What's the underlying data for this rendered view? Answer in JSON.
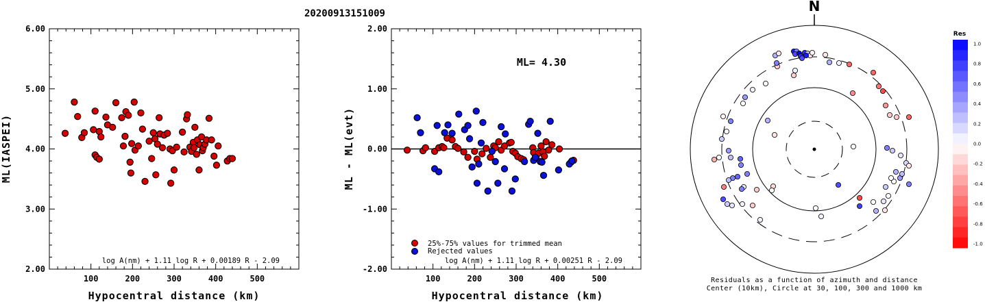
{
  "title": "20200913151009",
  "colors": {
    "red": "#d50000",
    "blue": "#0a10d8",
    "axis": "#000000"
  },
  "chart_data": [
    {
      "type": "scatter",
      "xlabel": "Hypocentral distance (km)",
      "ylabel": "ML(IASPEI)",
      "xlim": [
        0,
        600
      ],
      "ylim": [
        2,
        6
      ],
      "xticks": [
        "100",
        "200",
        "300",
        "400",
        "500"
      ],
      "yticks": [
        "2.00",
        "3.00",
        "4.00",
        "5.00",
        "6.00"
      ],
      "formula": "log A(nm) + 1.11 log R + 0.00189 R - 2.09",
      "series": [
        {
          "points": [
            [
              38,
              4.26
            ],
            [
              60,
              4.78
            ],
            [
              68,
              4.54
            ],
            [
              78,
              4.19
            ],
            [
              84,
              4.27
            ],
            [
              106,
              4.32
            ],
            [
              110,
              4.63
            ],
            [
              110,
              3.9
            ],
            [
              114,
              3.86
            ],
            [
              120,
              3.83
            ],
            [
              120,
              4.29
            ],
            [
              124,
              4.2
            ],
            [
              136,
              4.53
            ],
            [
              140,
              4.4
            ],
            [
              152,
              4.36
            ],
            [
              160,
              4.77
            ],
            [
              174,
              4.52
            ],
            [
              178,
              4.05
            ],
            [
              182,
              4.21
            ],
            [
              184,
              4.62
            ],
            [
              190,
              4.56
            ],
            [
              194,
              3.78
            ],
            [
              196,
              3.6
            ],
            [
              198,
              4.09
            ],
            [
              204,
              4.78
            ],
            [
              206,
              3.98
            ],
            [
              214,
              4.05
            ],
            [
              220,
              4.6
            ],
            [
              224,
              4.33
            ],
            [
              230,
              3.46
            ],
            [
              240,
              4.13
            ],
            [
              246,
              3.84
            ],
            [
              250,
              4.27
            ],
            [
              254,
              4.17
            ],
            [
              256,
              3.57
            ],
            [
              260,
              4.08
            ],
            [
              264,
              4.52
            ],
            [
              266,
              4.25
            ],
            [
              272,
              4.02
            ],
            [
              276,
              4.23
            ],
            [
              284,
              4.26
            ],
            [
              290,
              4.0
            ],
            [
              292,
              3.43
            ],
            [
              296,
              3.97
            ],
            [
              300,
              3.65
            ],
            [
              306,
              4.03
            ],
            [
              320,
              4.28
            ],
            [
              324,
              3.95
            ],
            [
              330,
              4.5
            ],
            [
              332,
              4.57
            ],
            [
              338,
              4.03
            ],
            [
              342,
              3.96
            ],
            [
              346,
              4.11
            ],
            [
              348,
              4.02
            ],
            [
              350,
              4.36
            ],
            [
              354,
              3.91
            ],
            [
              356,
              4.15
            ],
            [
              360,
              3.65
            ],
            [
              362,
              4.07
            ],
            [
              366,
              4.2
            ],
            [
              368,
              3.97
            ],
            [
              370,
              4.02
            ],
            [
              374,
              4.08
            ],
            [
              378,
              4.15
            ],
            [
              384,
              4.51
            ],
            [
              390,
              4.15
            ],
            [
              396,
              3.88
            ],
            [
              402,
              3.73
            ],
            [
              406,
              4.05
            ],
            [
              428,
              3.8
            ],
            [
              434,
              3.84
            ],
            [
              440,
              3.84
            ]
          ]
        }
      ]
    },
    {
      "type": "scatter",
      "xlabel": "Hypocentral distance (km)",
      "ylabel": "ML - ML(evt)",
      "xlim": [
        0,
        600
      ],
      "ylim": [
        -2,
        2
      ],
      "xticks": [
        "100",
        "200",
        "300",
        "400",
        "500"
      ],
      "yticks": [
        "-2.00",
        "-1.00",
        "0.00",
        "1.00",
        "2.00"
      ],
      "annotation": "ML= 4.30",
      "formula": "log A(nm) + 1.11 log R + 0.00251 R - 2.09",
      "legend": [
        "25%-75% values for trimmed mean",
        "Rejected values"
      ],
      "series": [
        {
          "name": "25%-75% values for trimmed mean",
          "color": "red",
          "points": [
            [
              38,
              -0.02
            ],
            [
              76,
              -0.03
            ],
            [
              82,
              0.02
            ],
            [
              104,
              -0.04
            ],
            [
              114,
              0.02
            ],
            [
              122,
              0.04
            ],
            [
              126,
              0.02
            ],
            [
              134,
              0.18
            ],
            [
              146,
              0.15
            ],
            [
              154,
              0.04
            ],
            [
              160,
              0.01
            ],
            [
              174,
              -0.05
            ],
            [
              184,
              -0.14
            ],
            [
              200,
              -0.04
            ],
            [
              206,
              -0.17
            ],
            [
              218,
              -0.08
            ],
            [
              228,
              0.01
            ],
            [
              238,
              -0.14
            ],
            [
              246,
              0.05
            ],
            [
              250,
              0.02
            ],
            [
              258,
              0.12
            ],
            [
              264,
              -0.02
            ],
            [
              272,
              0.05
            ],
            [
              284,
              0.1
            ],
            [
              288,
              0.11
            ],
            [
              292,
              -0.04
            ],
            [
              298,
              -0.07
            ],
            [
              304,
              -0.13
            ],
            [
              312,
              -0.16
            ],
            [
              318,
              -0.18
            ],
            [
              340,
              0.02
            ],
            [
              342,
              -0.06
            ],
            [
              348,
              -0.14
            ],
            [
              354,
              -0.07
            ],
            [
              360,
              0.05
            ],
            [
              364,
              -0.05
            ],
            [
              368,
              -0.12
            ],
            [
              372,
              0.12
            ],
            [
              378,
              -0.02
            ],
            [
              386,
              0.07
            ],
            [
              404,
              0.0
            ],
            [
              432,
              -0.22
            ],
            [
              438,
              -0.19
            ]
          ]
        },
        {
          "name": "Rejected values",
          "color": "blue",
          "points": [
            [
              62,
              0.52
            ],
            [
              70,
              0.27
            ],
            [
              104,
              -0.33
            ],
            [
              110,
              0.39
            ],
            [
              114,
              -0.38
            ],
            [
              128,
              0.27
            ],
            [
              136,
              0.4
            ],
            [
              146,
              0.26
            ],
            [
              162,
              0.58
            ],
            [
              176,
              0.32
            ],
            [
              184,
              0.39
            ],
            [
              188,
              0.17
            ],
            [
              194,
              -0.3
            ],
            [
              204,
              0.63
            ],
            [
              206,
              -0.57
            ],
            [
              210,
              -0.25
            ],
            [
              216,
              0.1
            ],
            [
              220,
              0.44
            ],
            [
              232,
              -0.7
            ],
            [
              242,
              -0.04
            ],
            [
              250,
              -0.21
            ],
            [
              256,
              -0.57
            ],
            [
              264,
              0.37
            ],
            [
              272,
              -0.33
            ],
            [
              274,
              0.25
            ],
            [
              290,
              -0.7
            ],
            [
              298,
              -0.5
            ],
            [
              320,
              -0.21
            ],
            [
              330,
              0.41
            ],
            [
              334,
              0.46
            ],
            [
              342,
              -0.19
            ],
            [
              346,
              -0.14
            ],
            [
              352,
              0.26
            ],
            [
              358,
              -0.21
            ],
            [
              362,
              -0.22
            ],
            [
              366,
              -0.44
            ],
            [
              382,
              0.46
            ],
            [
              402,
              -0.35
            ],
            [
              428,
              -0.25
            ],
            [
              434,
              -0.2
            ]
          ]
        }
      ]
    },
    {
      "type": "scatter",
      "north_label": "N",
      "caption": "Residuals as a function of azimuth and distance",
      "caption2": "Center (10km), Circle at 30, 100, 300 and 1000 km",
      "colorbar_title": "Res",
      "colorbar_labels": [
        "1.0",
        "0.8",
        "0.6",
        "0.4",
        "0.2",
        "0.0",
        "-0.2",
        "-0.4",
        "-0.6",
        "-0.8",
        "-1.0"
      ],
      "series": [
        {
          "name": "residual",
          "points": [
            [
              -57,
              -137,
              0.3
            ],
            [
              -52,
              -140,
              -0.1
            ],
            [
              -30,
              -143,
              0.9
            ],
            [
              -26,
              -143,
              0.5
            ],
            [
              -28,
              -139,
              0.7
            ],
            [
              -22,
              -140,
              1.0
            ],
            [
              -20,
              -136,
              0.8
            ],
            [
              -14,
              -141,
              0.8
            ],
            [
              -10,
              -140,
              0.2
            ],
            [
              -6,
              -137,
              -0.1
            ],
            [
              -3,
              -141,
              -0.05
            ],
            [
              -12,
              -137,
              0.9
            ],
            [
              -18,
              -133,
              0.7
            ],
            [
              -28,
              -115,
              0.05
            ],
            [
              -30,
              -108,
              -0.2
            ],
            [
              -54,
              -121,
              -0.2
            ],
            [
              -55,
              -126,
              0.5
            ],
            [
              16,
              -138,
              -0.1
            ],
            [
              22,
              -127,
              0.3
            ],
            [
              36,
              -126,
              0.05
            ],
            [
              51,
              -124,
              -0.6
            ],
            [
              86,
              -112,
              -0.6
            ],
            [
              94,
              -92,
              -0.55
            ],
            [
              100,
              -85,
              -0.7
            ],
            [
              56,
              -82,
              -0.45
            ],
            [
              104,
              -64,
              -0.4
            ],
            [
              110,
              -50,
              -0.2
            ],
            [
              138,
              -47,
              -0.6
            ],
            [
              120,
              -47,
              -0.2
            ],
            [
              -71,
              -96,
              0.0
            ],
            [
              -90,
              -87,
              0.05
            ],
            [
              -104,
              -67,
              0.0
            ],
            [
              -133,
              -48,
              -0.05
            ],
            [
              -122,
              -41,
              0.5
            ],
            [
              -101,
              -76,
              0.4
            ],
            [
              -128,
              -26,
              0.0
            ],
            [
              -135,
              -15,
              0.2
            ],
            [
              -58,
              -21,
              -0.1
            ],
            [
              -68,
              -42,
              0.3
            ],
            [
              -125,
              2,
              0.4
            ],
            [
              -122,
              12,
              0.25
            ],
            [
              -139,
              12,
              0.0
            ],
            [
              -108,
              14,
              0.6
            ],
            [
              -107,
              23,
              0.5
            ],
            [
              -146,
              15,
              -0.3
            ],
            [
              -98,
              36,
              0.5
            ],
            [
              -112,
              40,
              0.6
            ],
            [
              -119,
              42,
              0.5
            ],
            [
              -125,
              45,
              0.25
            ],
            [
              -132,
              55,
              -0.5
            ],
            [
              -103,
              55,
              0.1
            ],
            [
              -84,
              59,
              -0.2
            ],
            [
              -106,
              58,
              0.5
            ],
            [
              -133,
              73,
              0.7
            ],
            [
              -127,
              80,
              0.2
            ],
            [
              -120,
              82,
              0.1
            ],
            [
              -105,
              80,
              0.05
            ],
            [
              -90,
              82,
              -0.2
            ],
            [
              -60,
              54,
              -0.15
            ],
            [
              -79,
              103,
              0.05
            ],
            [
              -62,
              60,
              0.0
            ],
            [
              2,
              86,
              0.0
            ],
            [
              10,
              98,
              0.05
            ],
            [
              35,
              52,
              0.7
            ],
            [
              57,
              -4,
              0.0
            ],
            [
              66,
              71,
              -0.7
            ],
            [
              90,
              90,
              0.3
            ],
            [
              66,
              83,
              0.75
            ],
            [
              86,
              77,
              0.0
            ],
            [
              106,
              -2,
              0.5
            ],
            [
              114,
              2,
              0.2
            ],
            [
              126,
              9,
              0.1
            ],
            [
              134,
              20,
              0.15
            ],
            [
              138,
              24,
              -0.1
            ],
            [
              138,
              51,
              0.5
            ],
            [
              125,
              42,
              0.4
            ],
            [
              116,
              47,
              0.0
            ],
            [
              112,
              42,
              0.0
            ],
            [
              108,
              68,
              0.0
            ],
            [
              103,
              89,
              -0.1
            ],
            [
              128,
              36,
              0.25
            ],
            [
              119,
              33,
              0.3
            ],
            [
              104,
              55,
              0.2
            ],
            [
              101,
              76,
              0.1
            ]
          ]
        }
      ]
    }
  ]
}
